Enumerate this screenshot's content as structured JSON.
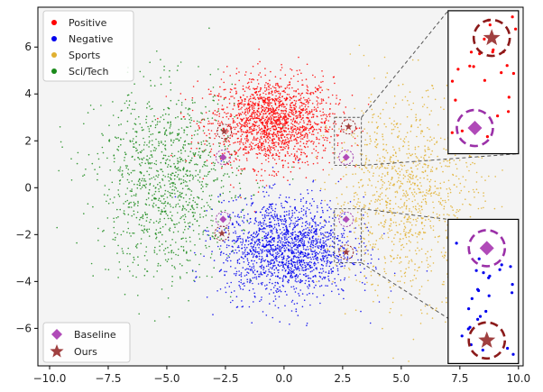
{
  "chart_data": {
    "type": "scatter",
    "xlim": [
      -10.5,
      10.2
    ],
    "ylim": [
      -7.6,
      7.7
    ],
    "xticks": [
      -10.0,
      -7.5,
      -5.0,
      -2.5,
      0.0,
      2.5,
      5.0,
      7.5,
      10.0
    ],
    "xtick_labels": [
      "−10.0",
      "−7.5",
      "−5.0",
      "−2.5",
      "0.0",
      "2.5",
      "5.0",
      "7.5",
      "10.0"
    ],
    "yticks": [
      -6,
      -4,
      -2,
      0,
      2,
      4,
      6
    ],
    "ytick_labels": [
      "−6",
      "−4",
      "−2",
      "0",
      "2",
      "4",
      "6"
    ],
    "background": "#f4f4f4",
    "series": [
      {
        "name": "Positive",
        "color": "#ff0000",
        "center": [
          -0.5,
          2.8
        ],
        "spread": [
          1.3,
          0.95
        ],
        "count": 1700
      },
      {
        "name": "Negative",
        "color": "#0000ee",
        "center": [
          0.1,
          -2.6
        ],
        "spread": [
          1.4,
          1.05
        ],
        "count": 1700
      },
      {
        "name": "Sports",
        "color": "#e0b030",
        "center": [
          5.2,
          -0.3
        ],
        "spread": [
          1.6,
          2.1
        ],
        "count": 1100
      },
      {
        "name": "Sci/Tech",
        "color": "#1a8a1a",
        "center": [
          -5.0,
          0.2
        ],
        "spread": [
          1.5,
          2.0
        ],
        "count": 1100
      }
    ],
    "legend_top": {
      "position": "top-left",
      "entries": [
        "Positive",
        "Negative",
        "Sports",
        "Sci/Tech"
      ]
    },
    "legend_bottom": {
      "position": "bottom-left",
      "entries": [
        {
          "label": "Baseline",
          "marker": "diamond",
          "color": "#b04ab8"
        },
        {
          "label": "Ours",
          "marker": "star",
          "color": "#a04040"
        }
      ]
    },
    "markers": [
      {
        "kind": "ours",
        "x": 2.75,
        "y": 2.6
      },
      {
        "kind": "baseline",
        "x": 2.65,
        "y": 1.3
      },
      {
        "kind": "baseline",
        "x": 2.65,
        "y": -1.35
      },
      {
        "kind": "ours",
        "x": 2.65,
        "y": -2.75
      },
      {
        "kind": "ours",
        "x": -2.55,
        "y": 2.4
      },
      {
        "kind": "baseline",
        "x": -2.6,
        "y": 1.3
      },
      {
        "kind": "baseline",
        "x": -2.6,
        "y": -1.35
      },
      {
        "kind": "ours",
        "x": -2.65,
        "y": -1.95
      }
    ],
    "zoom_boxes": [
      {
        "region_x": [
          2.15,
          3.3
        ],
        "region_y": [
          0.95,
          3.0
        ],
        "inset_x": [
          7.0,
          10.0
        ],
        "inset_y": [
          1.45,
          7.55
        ]
      },
      {
        "region_x": [
          2.15,
          3.3
        ],
        "region_y": [
          -3.2,
          -0.9
        ],
        "inset_x": [
          7.0,
          10.0
        ],
        "inset_y": [
          -7.5,
          -1.35
        ]
      }
    ]
  }
}
